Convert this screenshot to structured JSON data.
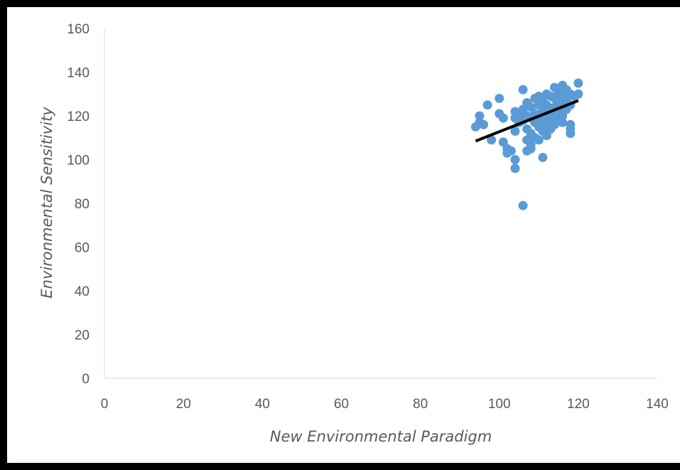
{
  "chart_data": {
    "type": "scatter",
    "title": "",
    "xlabel": "New Environmental Paradigm",
    "ylabel": "Environmental Sensitivity",
    "xlim": [
      0,
      140
    ],
    "ylim": [
      0,
      160
    ],
    "x_ticks": [
      "0",
      "20",
      "40",
      "60",
      "80",
      "100",
      "120",
      "140"
    ],
    "y_ticks": [
      "0",
      "20",
      "40",
      "60",
      "80",
      "100",
      "120",
      "140",
      "160"
    ],
    "grid": false,
    "legend": "none",
    "point_color": "#5B9BD5",
    "trendline_color": "#000000",
    "points": [
      [
        94,
        115
      ],
      [
        95,
        120
      ],
      [
        95,
        117
      ],
      [
        96,
        116
      ],
      [
        97,
        125
      ],
      [
        98,
        109
      ],
      [
        100,
        128
      ],
      [
        100,
        121
      ],
      [
        101,
        119
      ],
      [
        101,
        108
      ],
      [
        102,
        105
      ],
      [
        102,
        103
      ],
      [
        103,
        104
      ],
      [
        104,
        122
      ],
      [
        104,
        119
      ],
      [
        104,
        113
      ],
      [
        104,
        100
      ],
      [
        104,
        96
      ],
      [
        105,
        121
      ],
      [
        105,
        117
      ],
      [
        106,
        132
      ],
      [
        106,
        123
      ],
      [
        106,
        118
      ],
      [
        106,
        79
      ],
      [
        107,
        126
      ],
      [
        107,
        120
      ],
      [
        107,
        114
      ],
      [
        107,
        109
      ],
      [
        107,
        104
      ],
      [
        108,
        124
      ],
      [
        108,
        119
      ],
      [
        108,
        112
      ],
      [
        108,
        107
      ],
      [
        108,
        105
      ],
      [
        109,
        128
      ],
      [
        109,
        121
      ],
      [
        109,
        117
      ],
      [
        109,
        110
      ],
      [
        110,
        129
      ],
      [
        110,
        125
      ],
      [
        110,
        120
      ],
      [
        110,
        115
      ],
      [
        110,
        109
      ],
      [
        111,
        127
      ],
      [
        111,
        122
      ],
      [
        111,
        118
      ],
      [
        111,
        113
      ],
      [
        111,
        101
      ],
      [
        112,
        130
      ],
      [
        112,
        125
      ],
      [
        112,
        120
      ],
      [
        112,
        116
      ],
      [
        112,
        111
      ],
      [
        113,
        129
      ],
      [
        113,
        123
      ],
      [
        113,
        119
      ],
      [
        113,
        114
      ],
      [
        114,
        133
      ],
      [
        114,
        128
      ],
      [
        114,
        124
      ],
      [
        114,
        120
      ],
      [
        114,
        116
      ],
      [
        115,
        131
      ],
      [
        115,
        127
      ],
      [
        115,
        122
      ],
      [
        115,
        118
      ],
      [
        116,
        134
      ],
      [
        116,
        129
      ],
      [
        116,
        125
      ],
      [
        116,
        120
      ],
      [
        116,
        117
      ],
      [
        117,
        132
      ],
      [
        117,
        128
      ],
      [
        117,
        123
      ],
      [
        118,
        130
      ],
      [
        118,
        125
      ],
      [
        118,
        116
      ],
      [
        118,
        114
      ],
      [
        118,
        112
      ],
      [
        119,
        129
      ],
      [
        120,
        135
      ],
      [
        120,
        130
      ]
    ],
    "trendline": {
      "x": [
        94,
        120
      ],
      "y": [
        108.5,
        127
      ]
    }
  }
}
